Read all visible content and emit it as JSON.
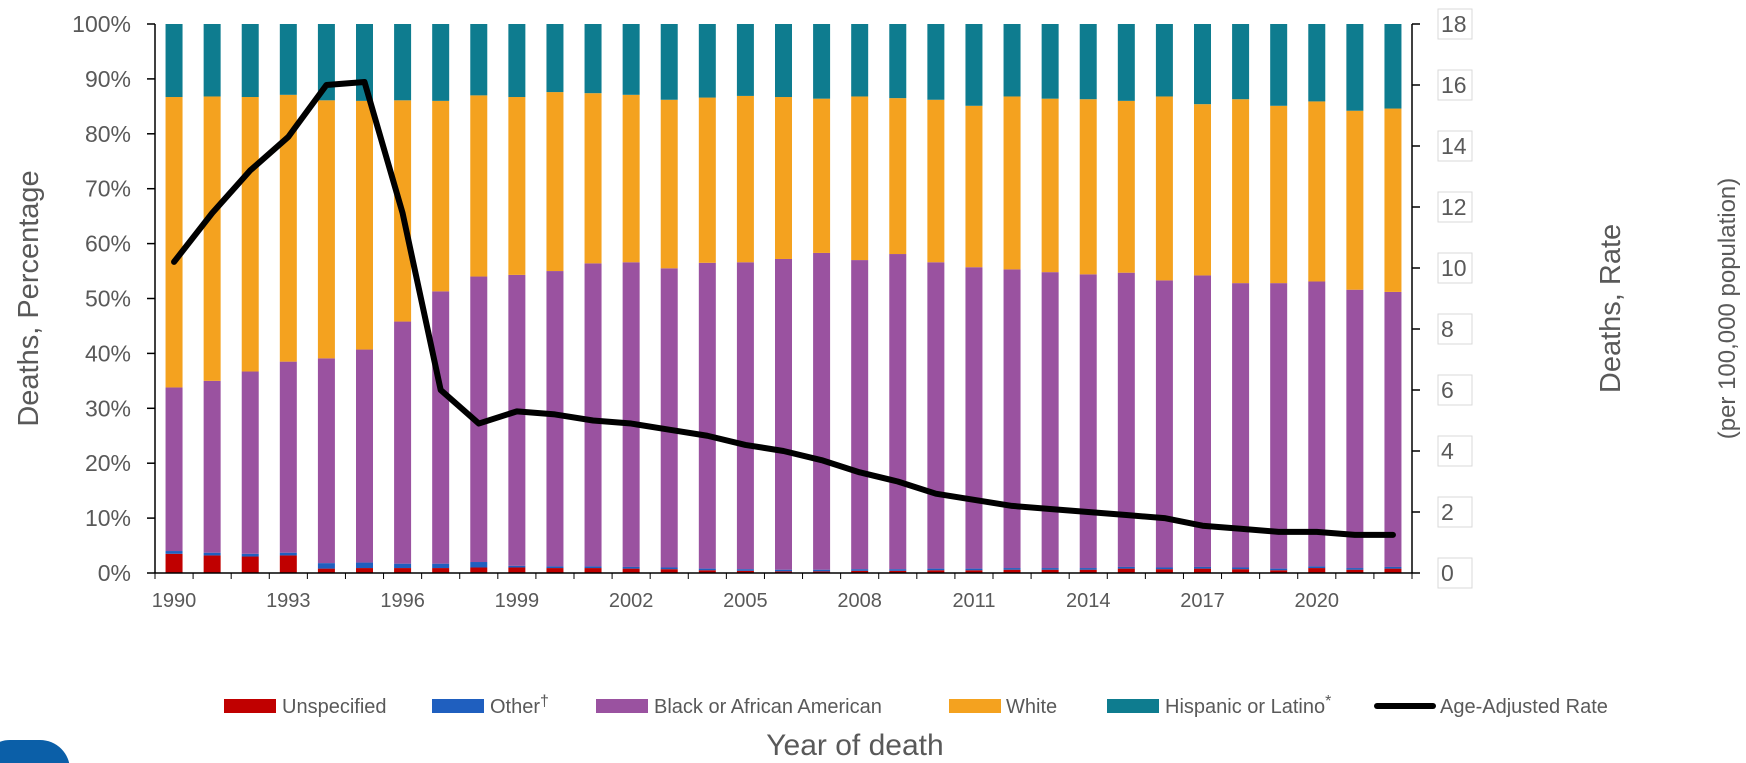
{
  "chart_data": {
    "type": "bar",
    "stacked": true,
    "categories": [
      "1990",
      "1991",
      "1992",
      "1993",
      "1994",
      "1995",
      "1996",
      "1997",
      "1998",
      "1999",
      "2000",
      "2001",
      "2002",
      "2003",
      "2004",
      "2005",
      "2006",
      "2007",
      "2008",
      "2009",
      "2010",
      "2011",
      "2012",
      "2013",
      "2014",
      "2015",
      "2016",
      "2017",
      "2018",
      "2019",
      "2020",
      "2021",
      "2022"
    ],
    "x_tick_labels": [
      "1990",
      "1993",
      "1996",
      "1999",
      "2002",
      "2005",
      "2008",
      "2011",
      "2014",
      "2017",
      "2020"
    ],
    "xlabel": "Year of death",
    "ylabel": "Deaths, Percentage",
    "y2label": "Deaths, Rate",
    "y2label_sub": "(per 100,000 population)",
    "ylim": [
      0,
      100
    ],
    "y2lim": [
      0,
      18
    ],
    "y_ticks": [
      "0%",
      "10%",
      "20%",
      "30%",
      "40%",
      "50%",
      "60%",
      "70%",
      "80%",
      "90%",
      "100%"
    ],
    "y2_ticks": [
      "0",
      "2",
      "4",
      "6",
      "8",
      "10",
      "12",
      "14",
      "16",
      "18"
    ],
    "legend_position": "bottom",
    "series": [
      {
        "name": "Unspecified",
        "color": "#c00000",
        "values": [
          3.5,
          3.2,
          3.0,
          3.2,
          0.8,
          0.9,
          0.9,
          0.9,
          1.0,
          1.0,
          0.9,
          0.9,
          0.8,
          0.7,
          0.5,
          0.4,
          0.3,
          0.3,
          0.4,
          0.4,
          0.5,
          0.5,
          0.6,
          0.6,
          0.6,
          0.8,
          0.7,
          0.8,
          0.7,
          0.5,
          0.9,
          0.6,
          0.8
        ]
      },
      {
        "name": "Other",
        "name_mark": "†",
        "color": "#1f5fbf",
        "values": [
          0.5,
          0.5,
          0.5,
          0.5,
          1.0,
          1.0,
          0.8,
          0.8,
          1.0,
          0.3,
          0.3,
          0.3,
          0.3,
          0.3,
          0.3,
          0.3,
          0.3,
          0.3,
          0.3,
          0.3,
          0.3,
          0.3,
          0.3,
          0.3,
          0.3,
          0.3,
          0.3,
          0.3,
          0.3,
          0.3,
          0.3,
          0.3,
          0.3
        ]
      },
      {
        "name": "Black or African American",
        "color": "#9a52a0",
        "values": [
          29.8,
          31.3,
          33.2,
          34.8,
          37.3,
          38.8,
          44.1,
          49.6,
          52.0,
          53.0,
          53.8,
          55.2,
          55.5,
          54.5,
          55.7,
          55.9,
          56.6,
          57.7,
          56.3,
          57.4,
          55.8,
          54.9,
          54.4,
          53.9,
          53.5,
          53.6,
          52.3,
          53.1,
          51.8,
          52.0,
          51.9,
          50.7,
          50.1
        ]
      },
      {
        "name": "White",
        "color": "#f4a21f",
        "values": [
          52.9,
          51.8,
          50.0,
          48.6,
          47.0,
          45.3,
          40.3,
          34.7,
          33.0,
          32.4,
          32.6,
          31.0,
          30.5,
          30.7,
          30.1,
          30.3,
          29.5,
          28.1,
          29.8,
          28.4,
          29.6,
          29.4,
          31.5,
          31.6,
          31.9,
          31.3,
          33.5,
          31.2,
          33.5,
          32.3,
          32.8,
          32.6,
          33.4
        ]
      },
      {
        "name": "Hispanic or Latino",
        "name_mark": "*",
        "color": "#0e7c8f",
        "values": [
          13.3,
          13.2,
          13.3,
          12.9,
          13.9,
          14.0,
          13.9,
          14.0,
          13.0,
          13.3,
          12.4,
          12.6,
          12.9,
          13.8,
          13.4,
          13.1,
          13.3,
          13.6,
          13.2,
          13.5,
          13.8,
          14.9,
          13.2,
          13.6,
          13.7,
          14.0,
          13.2,
          14.6,
          13.7,
          14.9,
          14.1,
          15.8,
          15.4
        ]
      },
      {
        "name": "Age-Adjusted Rate",
        "type": "line",
        "axis": "right",
        "color": "#000000",
        "values": [
          10.2,
          11.8,
          13.2,
          14.3,
          16.0,
          16.1,
          11.8,
          6.0,
          4.9,
          5.3,
          5.2,
          5.0,
          4.9,
          4.7,
          4.5,
          4.2,
          4.0,
          3.7,
          3.3,
          3.0,
          2.6,
          2.4,
          2.2,
          2.1,
          2.0,
          1.9,
          1.8,
          1.55,
          1.45,
          1.35,
          1.35,
          1.25,
          1.25
        ]
      }
    ]
  }
}
